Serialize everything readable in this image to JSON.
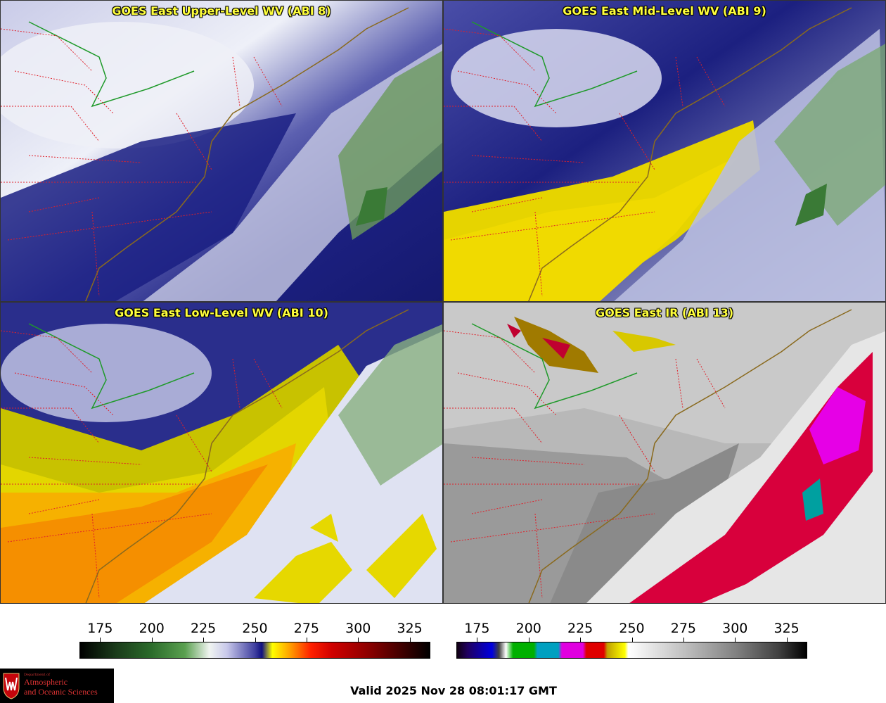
{
  "panels": [
    {
      "title": "GOES East Upper-Level WV (ABI 8)",
      "palette": "wv"
    },
    {
      "title": "GOES East Mid-Level WV (ABI 9)",
      "palette": "wv"
    },
    {
      "title": "GOES East Low-Level WV (ABI 10)",
      "palette": "wv"
    },
    {
      "title": "GOES East IR (ABI 13)",
      "palette": "ir"
    }
  ],
  "colorbars": {
    "wv": {
      "ticks": [
        "175",
        "200",
        "225",
        "250",
        "275",
        "300",
        "325"
      ]
    },
    "ir": {
      "ticks": [
        "175",
        "200",
        "225",
        "250",
        "275",
        "300",
        "325"
      ]
    }
  },
  "colors": {
    "state_border": "#e0202a",
    "coastline": "#8a6a1e",
    "great_lakes_border": "#1f9a2a",
    "title_text": "#ffff3c"
  },
  "logo": {
    "dept": "Department of",
    "line1": "Atmospheric",
    "line2": "and Oceanic Sciences"
  },
  "valid_time": "Valid 2025 Nov 28 08:01:17 GMT"
}
